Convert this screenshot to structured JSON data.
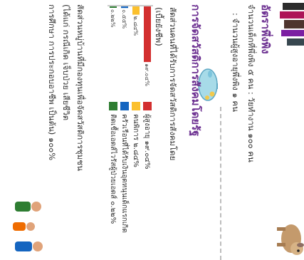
{
  "section1": {
    "title": "อัตราพึ่งพิง",
    "line1": "จำนวนเด็กที่พึ่งพิง ๕ คน : วัยทำงาน ๑๐๐ คน",
    "line2": ": จำนวนผู้สูงอายุพึ่งพิง ๑ คน"
  },
  "section2": {
    "title": "การจัดสวัสดิการสังคมโดยรัฐ",
    "question": "สัดส่วนคนที่ได้รับการจัดสวัสดิการสังคมโดย",
    "question_cont": "(เบี้ยยังชีพ)"
  },
  "legend": {
    "items": [
      {
        "label": "ผู้สูงอายุ ๑๙.๐๔%",
        "color": "#d32f2f"
      },
      {
        "label": "คนพิการ ๒.๘๔%",
        "color": "#fbc02d"
      },
      {
        "label": "ครัวเรือนที่ได้รับเงินอุดหนุนเด็กแรกเกิด",
        "color": "#1565c0"
      },
      {
        "label": "ติดเชื้อเอดส์ไวรัสผู้ป่วยเอดส์ ๐.๒๒%",
        "color": "#2e7d32"
      }
    ]
  },
  "chart_data": {
    "type": "bar",
    "categories": [
      "ผู้สูงอายุ",
      "คนพิการ",
      "ครัวเรือนที่ได้รับเงินอุดหนุนเด็กแรกเกิด",
      "ติดเชื้อเอดส์ไวรัสผู้ป่วยเอดส์"
    ],
    "values": [
      19.04,
      2.84,
      0.55,
      0.22
    ],
    "labels": [
      "๑๙.๐๔%",
      "๒.๘๔%",
      "๐.๕๕%",
      "๐.๒๒%"
    ],
    "colors": [
      "#d32f2f",
      "#fbc02d",
      "#1565c0",
      "#2e7d32"
    ],
    "ylim": [
      0,
      20
    ]
  },
  "section3": {
    "line1": "สัดส่วนหมู่บ้านที่มีกองทุนเพื่อจัดสวัสดิการชุมชน",
    "line2": "(ได้แก่ กรณีเกิด เจ็บป่วย เสียชีวิต",
    "line3": "การศึกษา การประกอบอาชีพ เป็นต้น) ๑๐๐%"
  },
  "icons": {
    "people_top_left": "people-illustration",
    "dog": "dog-illustration",
    "piggy_bank": "piggy-bank-illustration",
    "family": "family-illustration"
  }
}
